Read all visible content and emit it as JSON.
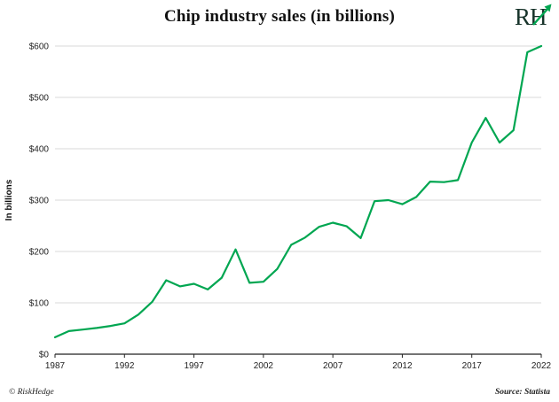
{
  "header": {
    "title": "Chip industry sales (in billions)",
    "logo_text": "RH"
  },
  "footer": {
    "credit": "© RiskHedge",
    "source": "Source: Statista"
  },
  "chart_data": {
    "type": "line",
    "title": "Chip industry sales (in billions)",
    "xlabel": "",
    "ylabel": "In billions",
    "ylim": [
      0,
      600
    ],
    "grid": true,
    "legend": "none",
    "line_color": "#00A651",
    "grid_color": "#d8d8d8",
    "axis_color": "#222222",
    "x_ticks": [
      1987,
      1992,
      1997,
      2002,
      2007,
      2012,
      2017,
      2022
    ],
    "y_tick_values": [
      0,
      100,
      200,
      300,
      400,
      500,
      600
    ],
    "y_ticks": [
      "$0",
      "$100",
      "$200",
      "$300",
      "$400",
      "$500",
      "$600"
    ],
    "x": [
      1987,
      1988,
      1989,
      1990,
      1991,
      1992,
      1993,
      1994,
      1995,
      1996,
      1997,
      1998,
      1999,
      2000,
      2001,
      2002,
      2003,
      2004,
      2005,
      2006,
      2007,
      2008,
      2009,
      2010,
      2011,
      2012,
      2013,
      2014,
      2015,
      2016,
      2017,
      2018,
      2019,
      2020,
      2021,
      2022
    ],
    "series": [
      {
        "name": "Chip industry sales",
        "values": [
          33,
          45,
          48,
          51,
          55,
          60,
          77,
          102,
          144,
          132,
          137,
          126,
          149,
          204,
          139,
          141,
          166,
          213,
          227,
          248,
          256,
          249,
          226,
          298,
          300,
          292,
          306,
          336,
          335,
          339,
          412,
          460,
          412,
          436,
          588,
          600
        ]
      }
    ]
  }
}
